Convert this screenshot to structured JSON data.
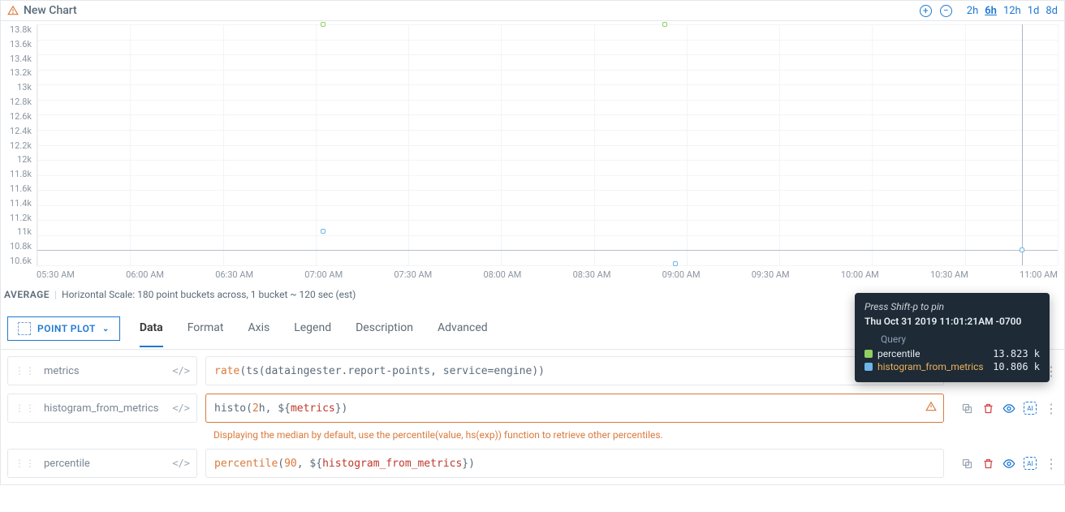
{
  "header": {
    "title": "New Chart",
    "time_ranges": [
      "2h",
      "6h",
      "12h",
      "1d",
      "8d"
    ],
    "active_range": "6h"
  },
  "chart": {
    "type": "scatter",
    "y_ticks": [
      "13.8k",
      "13.6k",
      "13.4k",
      "13.2k",
      "13k",
      "12.8k",
      "12.6k",
      "12.4k",
      "12.2k",
      "12k",
      "11.8k",
      "11.6k",
      "11.4k",
      "11.2k",
      "11k",
      "10.8k",
      "10.6k"
    ],
    "y_min": 10600,
    "y_max": 13800,
    "x_ticks": [
      "05:30 AM",
      "06:00 AM",
      "06:30 AM",
      "07:00 AM",
      "07:30 AM",
      "08:00 AM",
      "08:30 AM",
      "09:00 AM",
      "09:30 AM",
      "10:00 AM",
      "10:30 AM",
      "11:00 AM"
    ],
    "x_min": 0,
    "x_max": 100,
    "hline_y": 10800,
    "cursor_x": 96.5,
    "grid_color": "#f2f4f6",
    "series": [
      {
        "name": "percentile",
        "color": "#8fcf63",
        "points": [
          {
            "x": 28.0,
            "y": 13800
          },
          {
            "x": 61.5,
            "y": 13800
          }
        ]
      },
      {
        "name": "histogram_from_metrics",
        "color": "#6db6e8",
        "points": [
          {
            "x": 28.0,
            "y": 11050
          },
          {
            "x": 62.5,
            "y": 10620
          },
          {
            "x": 96.5,
            "y": 10806
          }
        ]
      }
    ]
  },
  "summary": {
    "label": "AVERAGE",
    "text": "Horizontal Scale: 180 point buckets across, 1 bucket ~ 120 sec (est)"
  },
  "plot_selector": {
    "label": "POINT PLOT"
  },
  "tabs": {
    "items": [
      "Data",
      "Format",
      "Axis",
      "Legend",
      "Description",
      "Advanced"
    ],
    "active": "Data"
  },
  "queries": [
    {
      "name": "metrics",
      "tokens": [
        {
          "t": "fn",
          "v": "rate"
        },
        {
          "t": "plain",
          "v": "(ts(dataingester.report-points, service=engine))"
        }
      ],
      "warn": false
    },
    {
      "name": "histogram_from_metrics",
      "tokens": [
        {
          "t": "plain",
          "v": "histo("
        },
        {
          "t": "num",
          "v": "2"
        },
        {
          "t": "plain",
          "v": "h, ${"
        },
        {
          "t": "var",
          "v": "metrics"
        },
        {
          "t": "plain",
          "v": "})"
        }
      ],
      "warn": true,
      "message": "Displaying the median by default, use the percentile(value, hs(exp)) function to retrieve other percentiles."
    },
    {
      "name": "percentile",
      "tokens": [
        {
          "t": "fn",
          "v": "percentile"
        },
        {
          "t": "plain",
          "v": "("
        },
        {
          "t": "num",
          "v": "90"
        },
        {
          "t": "plain",
          "v": ", ${"
        },
        {
          "t": "var",
          "v": "histogram_from_metrics"
        },
        {
          "t": "plain",
          "v": "})"
        }
      ],
      "warn": false
    }
  ],
  "tooltip": {
    "pin": "Press Shift-p to pin",
    "timestamp": "Thu Oct 31 2019 11:01:21AM -0700",
    "query_header": "Query",
    "rows": [
      {
        "swatch": "#8fcf63",
        "label": "percentile",
        "value": "13.823 k",
        "label_color": "#e6edf3"
      },
      {
        "swatch": "#6db6e8",
        "label": "histogram_from_metrics",
        "value": "10.806 k",
        "label_color": "#e8b35a"
      }
    ]
  }
}
